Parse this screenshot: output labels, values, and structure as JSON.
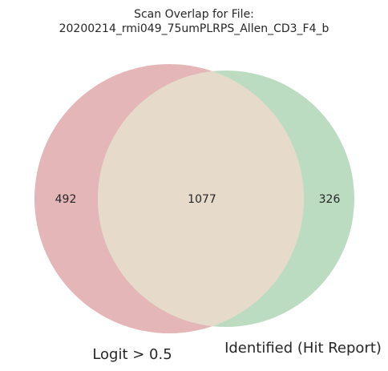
{
  "chart_data": {
    "type": "venn",
    "title_lines": [
      "Scan Overlap for File:",
      "20200214_rmi049_75umPLRPS_Allen_CD3_F4_b"
    ],
    "sets": [
      {
        "name": "Logit > 0.5",
        "only_count": "492",
        "color": "#e4b6b8"
      },
      {
        "name": "Identified (Hit Report)",
        "only_count": "326",
        "color": "#bcdcc2"
      }
    ],
    "intersection_count": "1077",
    "intersection_color": "#e6dbca"
  }
}
